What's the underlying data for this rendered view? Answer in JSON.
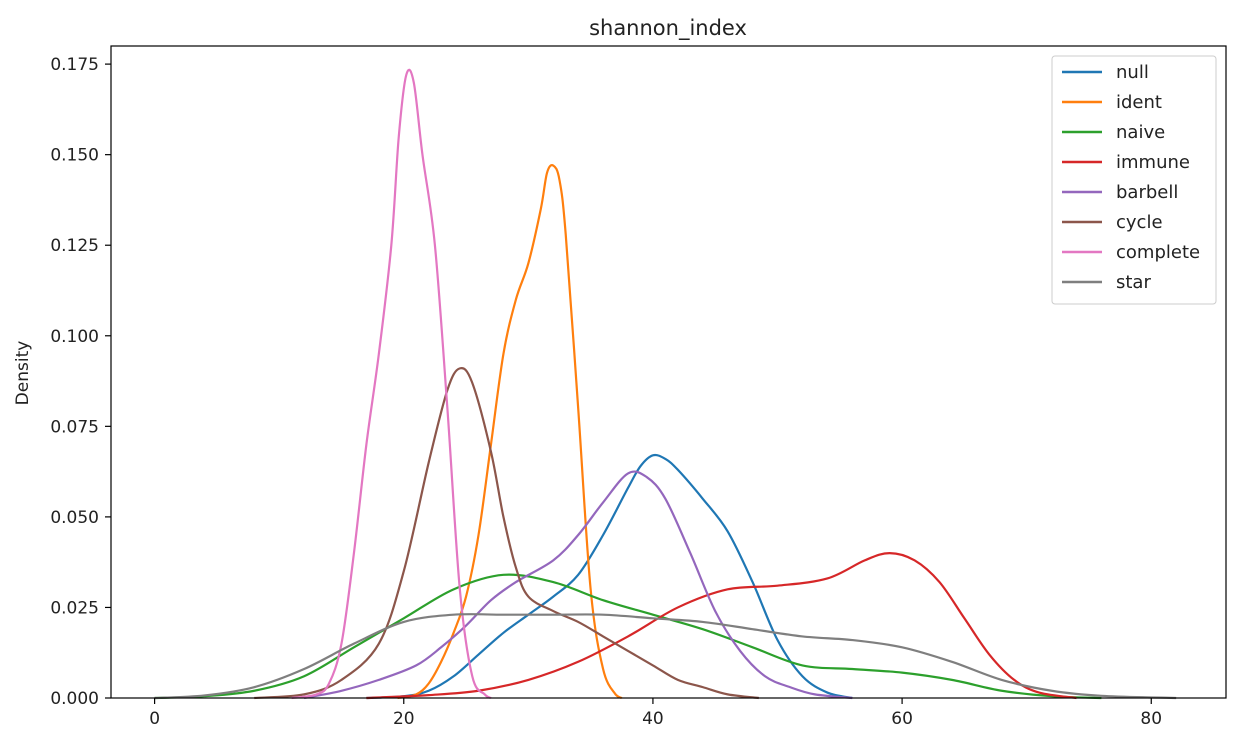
{
  "chart_data": {
    "type": "line",
    "title": "shannon_index",
    "xlabel": "",
    "ylabel": "Density",
    "xlim": [
      -3.5,
      86
    ],
    "ylim": [
      0,
      0.18
    ],
    "xticks": [
      0,
      20,
      40,
      60,
      80
    ],
    "yticks": [
      0.0,
      0.025,
      0.05,
      0.075,
      0.1,
      0.125,
      0.15,
      0.175
    ],
    "ytick_labels": [
      "0.000",
      "0.025",
      "0.050",
      "0.075",
      "0.100",
      "0.125",
      "0.150",
      "0.175"
    ],
    "grid": false,
    "legend_position": "top-right",
    "series": [
      {
        "name": "null",
        "color": "#1f77b4",
        "points": [
          [
            17,
            0
          ],
          [
            20,
            0.0005
          ],
          [
            22,
            0.002
          ],
          [
            24,
            0.006
          ],
          [
            26,
            0.012
          ],
          [
            28,
            0.018
          ],
          [
            30,
            0.023
          ],
          [
            32,
            0.028
          ],
          [
            34,
            0.034
          ],
          [
            36,
            0.045
          ],
          [
            38,
            0.058
          ],
          [
            39,
            0.064
          ],
          [
            40,
            0.067
          ],
          [
            41,
            0.066
          ],
          [
            42,
            0.063
          ],
          [
            44,
            0.055
          ],
          [
            46,
            0.046
          ],
          [
            48,
            0.032
          ],
          [
            50,
            0.016
          ],
          [
            52,
            0.006
          ],
          [
            54,
            0.0015
          ],
          [
            56,
            0
          ]
        ]
      },
      {
        "name": "ident",
        "color": "#ff7f0e",
        "points": [
          [
            19.5,
            0
          ],
          [
            21,
            0.001
          ],
          [
            22,
            0.004
          ],
          [
            23,
            0.01
          ],
          [
            24,
            0.018
          ],
          [
            25,
            0.028
          ],
          [
            26,
            0.045
          ],
          [
            27,
            0.07
          ],
          [
            28,
            0.095
          ],
          [
            29,
            0.11
          ],
          [
            30,
            0.12
          ],
          [
            31,
            0.135
          ],
          [
            31.5,
            0.145
          ],
          [
            32,
            0.147
          ],
          [
            32.5,
            0.143
          ],
          [
            33,
            0.128
          ],
          [
            34,
            0.08
          ],
          [
            35,
            0.03
          ],
          [
            36,
            0.008
          ],
          [
            37,
            0.001
          ],
          [
            37.5,
            0
          ]
        ]
      },
      {
        "name": "naive",
        "color": "#2ca02c",
        "points": [
          [
            0,
            0
          ],
          [
            4,
            0.0005
          ],
          [
            8,
            0.002
          ],
          [
            12,
            0.006
          ],
          [
            16,
            0.014
          ],
          [
            20,
            0.022
          ],
          [
            24,
            0.03
          ],
          [
            28,
            0.034
          ],
          [
            32,
            0.032
          ],
          [
            36,
            0.027
          ],
          [
            40,
            0.023
          ],
          [
            44,
            0.019
          ],
          [
            48,
            0.014
          ],
          [
            52,
            0.009
          ],
          [
            56,
            0.008
          ],
          [
            60,
            0.007
          ],
          [
            64,
            0.005
          ],
          [
            68,
            0.002
          ],
          [
            72,
            0.0005
          ],
          [
            76,
            0
          ]
        ]
      },
      {
        "name": "immune",
        "color": "#d62728",
        "points": [
          [
            17,
            0
          ],
          [
            22,
            0.0008
          ],
          [
            26,
            0.002
          ],
          [
            30,
            0.005
          ],
          [
            34,
            0.01
          ],
          [
            38,
            0.017
          ],
          [
            42,
            0.025
          ],
          [
            46,
            0.03
          ],
          [
            50,
            0.031
          ],
          [
            54,
            0.033
          ],
          [
            57,
            0.038
          ],
          [
            59,
            0.04
          ],
          [
            61,
            0.038
          ],
          [
            63,
            0.032
          ],
          [
            65,
            0.022
          ],
          [
            67,
            0.012
          ],
          [
            69,
            0.005
          ],
          [
            71,
            0.0015
          ],
          [
            74,
            0
          ]
        ]
      },
      {
        "name": "barbell",
        "color": "#9467bd",
        "points": [
          [
            12,
            0
          ],
          [
            15,
            0.002
          ],
          [
            18,
            0.005
          ],
          [
            21,
            0.009
          ],
          [
            23,
            0.014
          ],
          [
            25,
            0.02
          ],
          [
            27,
            0.027
          ],
          [
            29,
            0.032
          ],
          [
            32,
            0.038
          ],
          [
            34,
            0.045
          ],
          [
            36,
            0.054
          ],
          [
            38,
            0.062
          ],
          [
            39.5,
            0.061
          ],
          [
            41,
            0.055
          ],
          [
            43,
            0.04
          ],
          [
            45,
            0.024
          ],
          [
            47,
            0.013
          ],
          [
            49,
            0.006
          ],
          [
            51,
            0.003
          ],
          [
            53,
            0.001
          ],
          [
            56,
            0
          ]
        ]
      },
      {
        "name": "cycle",
        "color": "#8c564b",
        "points": [
          [
            8,
            0
          ],
          [
            12,
            0.001
          ],
          [
            15,
            0.005
          ],
          [
            18,
            0.015
          ],
          [
            20,
            0.035
          ],
          [
            22,
            0.065
          ],
          [
            23.5,
            0.085
          ],
          [
            24.5,
            0.091
          ],
          [
            25.5,
            0.087
          ],
          [
            27,
            0.068
          ],
          [
            28,
            0.05
          ],
          [
            29,
            0.036
          ],
          [
            30,
            0.028
          ],
          [
            32,
            0.024
          ],
          [
            34,
            0.021
          ],
          [
            36,
            0.017
          ],
          [
            38,
            0.013
          ],
          [
            40,
            0.009
          ],
          [
            42,
            0.005
          ],
          [
            44,
            0.003
          ],
          [
            46,
            0.001
          ],
          [
            48.5,
            0
          ]
        ]
      },
      {
        "name": "complete",
        "color": "#e377c2",
        "points": [
          [
            11,
            0
          ],
          [
            13,
            0.001
          ],
          [
            14,
            0.004
          ],
          [
            15,
            0.015
          ],
          [
            16,
            0.04
          ],
          [
            17,
            0.07
          ],
          [
            18,
            0.095
          ],
          [
            19,
            0.125
          ],
          [
            19.6,
            0.155
          ],
          [
            20.2,
            0.172
          ],
          [
            20.8,
            0.17
          ],
          [
            21.5,
            0.15
          ],
          [
            22.5,
            0.125
          ],
          [
            23.5,
            0.08
          ],
          [
            24.5,
            0.03
          ],
          [
            25.5,
            0.006
          ],
          [
            26.5,
            0.001
          ],
          [
            27,
            0
          ]
        ]
      },
      {
        "name": "star",
        "color": "#7f7f7f",
        "points": [
          [
            0,
            0
          ],
          [
            4,
            0.0007
          ],
          [
            8,
            0.003
          ],
          [
            12,
            0.008
          ],
          [
            16,
            0.015
          ],
          [
            20,
            0.021
          ],
          [
            24,
            0.023
          ],
          [
            28,
            0.023
          ],
          [
            32,
            0.023
          ],
          [
            36,
            0.023
          ],
          [
            40,
            0.022
          ],
          [
            44,
            0.021
          ],
          [
            48,
            0.019
          ],
          [
            52,
            0.017
          ],
          [
            56,
            0.016
          ],
          [
            60,
            0.014
          ],
          [
            64,
            0.01
          ],
          [
            68,
            0.005
          ],
          [
            72,
            0.002
          ],
          [
            76,
            0.0006
          ],
          [
            82,
            0
          ]
        ]
      }
    ]
  }
}
